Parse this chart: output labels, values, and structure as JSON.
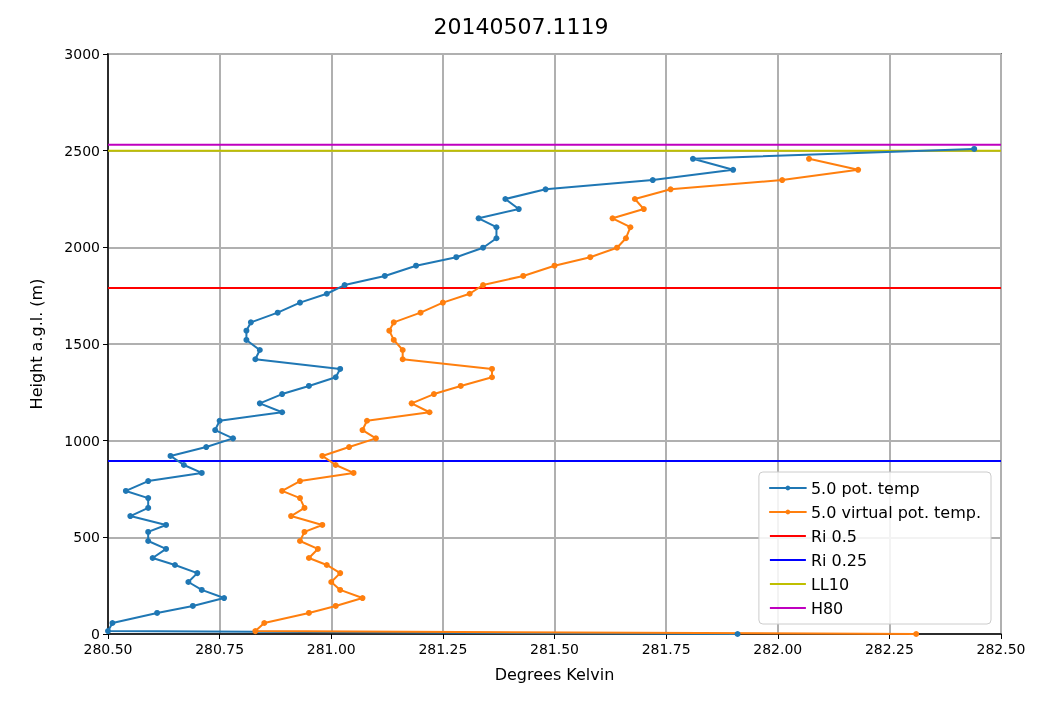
{
  "chart_data": {
    "type": "line",
    "title": "20140507.1119",
    "xlabel": "Degrees Kelvin",
    "ylabel": "Height a.g.l. (m)",
    "xlim": [
      280.5,
      282.5
    ],
    "xticks": [
      {
        "value": 280.5,
        "label": "280.50"
      },
      {
        "value": 280.75,
        "label": "280.75"
      },
      {
        "value": 281,
        "label": "281.00"
      },
      {
        "value": 281.25,
        "label": "281.25"
      },
      {
        "value": 281.5,
        "label": "281.50"
      },
      {
        "value": 281.75,
        "label": "281.75"
      },
      {
        "value": 282,
        "label": "282.00"
      },
      {
        "value": 282.25,
        "label": "282.25"
      },
      {
        "value": 282.5,
        "label": "282.50"
      }
    ],
    "ylim": [
      0,
      3000
    ],
    "yticks": [
      0,
      500,
      1000,
      1500,
      2000,
      2500,
      3000
    ],
    "grid": true,
    "legend": "bottom right",
    "marker": "circle",
    "line_style": "solid",
    "series": [
      {
        "name": "5.0 pot. temp",
        "color": "#1f77b4",
        "x": [
          281.91,
          280.5,
          280.51,
          280.61,
          280.69,
          280.76,
          280.71,
          280.68,
          280.7,
          280.65,
          280.6,
          280.63,
          280.59,
          280.59,
          280.63,
          280.55,
          280.59,
          280.59,
          280.54,
          280.59,
          280.71,
          280.67,
          280.64,
          280.72,
          280.78,
          280.74,
          280.75,
          280.89,
          280.84,
          280.89,
          280.95,
          281.01,
          281.02,
          280.83,
          280.84,
          280.81,
          280.81,
          280.82,
          280.88,
          280.93,
          280.99,
          281.03,
          281.12,
          281.19,
          281.28,
          281.34,
          281.37,
          281.37,
          281.33,
          281.42,
          281.39,
          281.48,
          281.72,
          281.9,
          281.81,
          282.44
        ],
        "values": [
          0,
          15,
          57,
          109,
          145,
          186,
          228,
          269,
          315,
          357,
          393,
          440,
          481,
          528,
          564,
          610,
          652,
          703,
          740,
          791,
          833,
          874,
          921,
          967,
          1012,
          1055,
          1103,
          1147,
          1193,
          1241,
          1283,
          1328,
          1371,
          1421,
          1469,
          1521,
          1569,
          1612,
          1662,
          1714,
          1760,
          1805,
          1852,
          1905,
          1949,
          1998,
          2047,
          2104,
          2150,
          2198,
          2250,
          2300,
          2348,
          2401,
          2458,
          2509
        ]
      },
      {
        "name": "5.0 virtual pot. temp.",
        "color": "#ff7f0e",
        "x": [
          282.31,
          280.83,
          280.85,
          280.95,
          281.01,
          281.07,
          281.02,
          281.0,
          281.02,
          280.99,
          280.95,
          280.97,
          280.93,
          280.94,
          280.98,
          280.91,
          280.94,
          280.93,
          280.89,
          280.93,
          281.05,
          281.01,
          280.98,
          281.04,
          281.1,
          281.07,
          281.08,
          281.22,
          281.18,
          281.23,
          281.29,
          281.36,
          281.36,
          281.16,
          281.16,
          281.14,
          281.13,
          281.14,
          281.2,
          281.25,
          281.31,
          281.34,
          281.43,
          281.5,
          281.58,
          281.64,
          281.66,
          281.67,
          281.63,
          281.7,
          281.68,
          281.76,
          282.01,
          282.18,
          282.07
        ],
        "values": [
          0,
          15,
          57,
          109,
          145,
          186,
          228,
          269,
          315,
          357,
          393,
          440,
          481,
          528,
          564,
          610,
          652,
          703,
          740,
          791,
          833,
          874,
          921,
          967,
          1012,
          1055,
          1103,
          1147,
          1193,
          1241,
          1283,
          1328,
          1371,
          1421,
          1469,
          1521,
          1569,
          1612,
          1662,
          1714,
          1760,
          1805,
          1852,
          1905,
          1949,
          1998,
          2047,
          2104,
          2150,
          2198,
          2250,
          2300,
          2348,
          2401,
          2458
        ]
      }
    ],
    "ref_lines": [
      {
        "axis": "y",
        "value": 1790,
        "label": "Ri 0.5",
        "color": "#ff0000"
      },
      {
        "axis": "y",
        "value": 895,
        "label": "Ri 0.25",
        "color": "#0000ff"
      },
      {
        "axis": "y",
        "value": 2500,
        "label": "LL10",
        "color": "#bfbf00"
      },
      {
        "axis": "y",
        "value": 2530,
        "label": "H80",
        "color": "#bf00bf"
      }
    ]
  }
}
